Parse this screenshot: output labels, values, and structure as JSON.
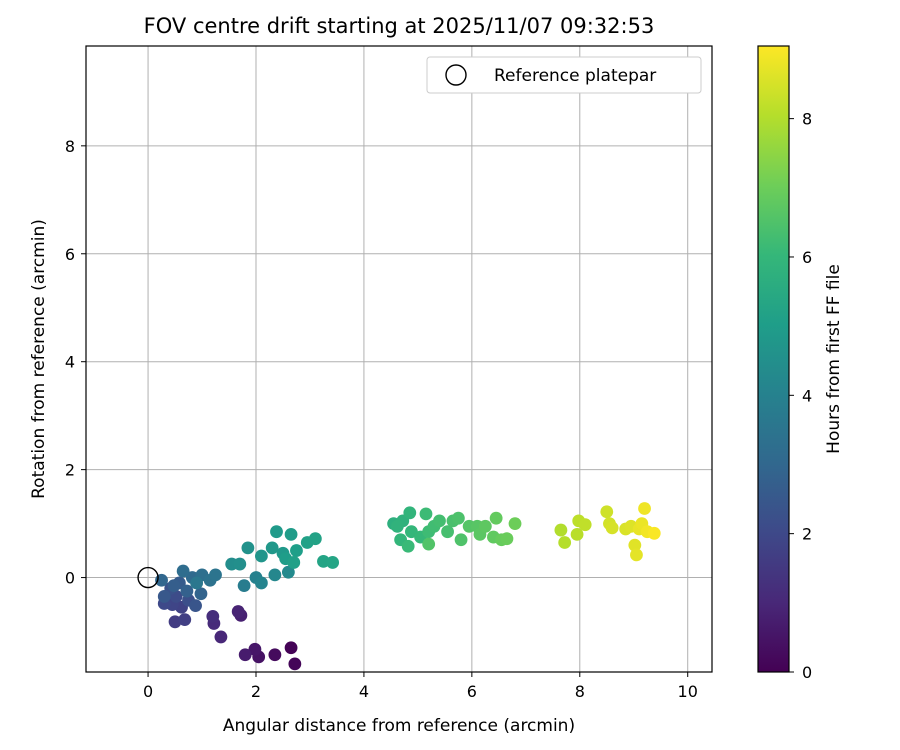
{
  "chart_data": {
    "type": "scatter",
    "title": "FOV centre drift starting at 2025/11/07 09:32:53",
    "xlabel": "Angular distance from reference (arcmin)",
    "ylabel": "Rotation from reference (arcmin)",
    "xlim": [
      -1.15,
      10.45
    ],
    "ylim": [
      -1.75,
      9.85
    ],
    "xticks": [
      "0",
      "2",
      "4",
      "6",
      "8",
      "10"
    ],
    "yticks": [
      "0",
      "2",
      "4",
      "6",
      "8"
    ],
    "grid": true,
    "legend": {
      "placement": "top-right",
      "label": "Reference platepar"
    },
    "reference_point": {
      "x": 0,
      "y": 0
    },
    "colorbar": {
      "label": "Hours from first FF file",
      "range": [
        0,
        9.05
      ],
      "ticks": [
        "0",
        "2",
        "4",
        "6",
        "8"
      ],
      "colormap": "viridis"
    },
    "series": [
      {
        "points": [
          [
            2.65,
            -1.3,
            0.05
          ],
          [
            2.72,
            -1.6,
            0.1
          ],
          [
            2.35,
            -1.43,
            0.25
          ],
          [
            2.05,
            -1.47,
            0.45
          ],
          [
            1.98,
            -1.33,
            0.55
          ],
          [
            1.8,
            -1.43,
            0.7
          ],
          [
            1.72,
            -0.7,
            0.8
          ],
          [
            1.67,
            -0.63,
            0.9
          ],
          [
            1.35,
            -1.1,
            1.0
          ],
          [
            1.22,
            -0.85,
            1.1
          ],
          [
            1.2,
            -0.72,
            1.2
          ],
          [
            0.5,
            -0.82,
            1.6
          ],
          [
            0.68,
            -0.78,
            1.7
          ],
          [
            0.62,
            -0.55,
            1.8
          ],
          [
            0.45,
            -0.5,
            1.9
          ],
          [
            0.3,
            -0.48,
            2.0
          ],
          [
            0.52,
            -0.35,
            2.1
          ],
          [
            0.75,
            -0.42,
            2.2
          ],
          [
            0.42,
            -0.2,
            2.3
          ],
          [
            0.88,
            -0.52,
            2.4
          ],
          [
            0.3,
            -0.35,
            2.5
          ],
          [
            0.58,
            -0.1,
            2.6
          ],
          [
            0.48,
            -0.15,
            2.7
          ],
          [
            0.72,
            -0.25,
            2.8
          ],
          [
            0.98,
            -0.3,
            2.9
          ],
          [
            0.25,
            -0.05,
            3.0
          ],
          [
            0.82,
            0.0,
            3.1
          ],
          [
            0.65,
            0.12,
            3.2
          ],
          [
            1.0,
            0.05,
            3.3
          ],
          [
            1.15,
            -0.05,
            3.4
          ],
          [
            1.25,
            0.05,
            3.5
          ],
          [
            0.9,
            -0.1,
            3.6
          ],
          [
            1.78,
            -0.15,
            3.8
          ],
          [
            2.0,
            0.0,
            4.0
          ],
          [
            2.1,
            -0.1,
            4.1
          ],
          [
            2.35,
            0.05,
            4.2
          ],
          [
            2.6,
            0.1,
            4.3
          ],
          [
            1.55,
            0.25,
            4.4
          ],
          [
            1.7,
            0.25,
            4.5
          ],
          [
            1.85,
            0.55,
            4.6
          ],
          [
            2.1,
            0.4,
            4.7
          ],
          [
            2.3,
            0.55,
            4.8
          ],
          [
            2.5,
            0.45,
            4.85
          ],
          [
            2.38,
            0.85,
            4.9
          ],
          [
            2.65,
            0.8,
            4.95
          ],
          [
            2.55,
            0.35,
            5.0
          ],
          [
            2.75,
            0.5,
            5.05
          ],
          [
            2.7,
            0.28,
            5.1
          ],
          [
            2.95,
            0.65,
            5.15
          ],
          [
            3.1,
            0.72,
            5.2
          ],
          [
            3.25,
            0.3,
            5.25
          ],
          [
            3.42,
            0.28,
            5.3
          ],
          [
            4.55,
            1.0,
            5.7
          ],
          [
            4.72,
            1.05,
            5.8
          ],
          [
            4.62,
            0.95,
            5.85
          ],
          [
            4.85,
            1.2,
            5.9
          ],
          [
            4.68,
            0.7,
            5.95
          ],
          [
            4.88,
            0.85,
            6.0
          ],
          [
            5.05,
            0.75,
            6.05
          ],
          [
            4.82,
            0.58,
            6.1
          ],
          [
            5.15,
            1.18,
            6.15
          ],
          [
            5.2,
            0.85,
            6.2
          ],
          [
            5.3,
            0.95,
            6.25
          ],
          [
            5.4,
            1.05,
            6.3
          ],
          [
            5.55,
            0.85,
            6.35
          ],
          [
            5.65,
            1.05,
            6.4
          ],
          [
            5.75,
            1.1,
            6.45
          ],
          [
            5.8,
            0.7,
            6.5
          ],
          [
            5.2,
            0.62,
            6.55
          ],
          [
            5.95,
            0.95,
            6.6
          ],
          [
            6.1,
            0.95,
            6.65
          ],
          [
            6.15,
            0.8,
            6.7
          ],
          [
            6.25,
            0.95,
            6.75
          ],
          [
            6.4,
            0.75,
            6.8
          ],
          [
            6.45,
            1.1,
            6.85
          ],
          [
            6.55,
            0.7,
            6.9
          ],
          [
            6.65,
            0.72,
            6.95
          ],
          [
            6.8,
            1.0,
            7.0
          ],
          [
            7.65,
            0.88,
            8.0
          ],
          [
            7.72,
            0.65,
            8.05
          ],
          [
            7.95,
            0.8,
            8.1
          ],
          [
            7.98,
            1.05,
            8.15
          ],
          [
            8.1,
            0.98,
            8.2
          ],
          [
            8.5,
            1.22,
            8.4
          ],
          [
            8.55,
            1.0,
            8.45
          ],
          [
            8.6,
            0.92,
            8.5
          ],
          [
            8.85,
            0.9,
            8.55
          ],
          [
            8.95,
            0.95,
            8.6
          ],
          [
            9.02,
            0.6,
            8.65
          ],
          [
            9.05,
            0.42,
            8.7
          ],
          [
            9.1,
            0.9,
            8.75
          ],
          [
            9.15,
            1.0,
            8.8
          ],
          [
            9.2,
            1.28,
            8.85
          ],
          [
            9.25,
            0.85,
            8.9
          ],
          [
            9.38,
            0.82,
            9.0
          ]
        ]
      }
    ]
  },
  "colors": {
    "viridis": [
      "#440154",
      "#482878",
      "#3e4989",
      "#31688e",
      "#26828e",
      "#1f9e89",
      "#35b779",
      "#6ece58",
      "#b5de2b",
      "#fde725"
    ],
    "axis": "#000000",
    "grid": "#b0b0b0"
  }
}
